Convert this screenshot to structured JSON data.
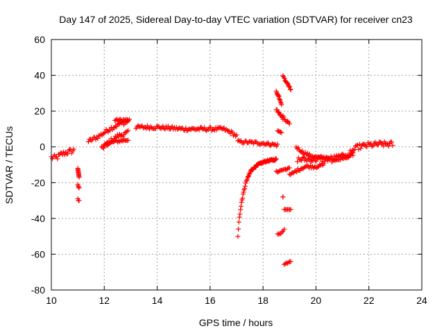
{
  "chart_data": {
    "type": "scatter",
    "title": "Day 147 of 2025, Sidereal Day-to-day VTEC variation (SDTVAR) for receiver cn23",
    "xlabel": "GPS time / hours",
    "ylabel": "SDTVAR / TECUs",
    "xlim": [
      10,
      24
    ],
    "ylim": [
      -80,
      60
    ],
    "xticks": [
      10,
      12,
      14,
      16,
      18,
      20,
      22,
      24
    ],
    "yticks": [
      -80,
      -60,
      -40,
      -20,
      0,
      20,
      40,
      60
    ],
    "grid": true,
    "marker": "+",
    "color": "#ff0000",
    "segments": [
      {
        "x0": 10.0,
        "x1": 10.85,
        "points": [
          [
            10.0,
            -6
          ],
          [
            10.2,
            -6
          ],
          [
            10.4,
            -4
          ],
          [
            10.6,
            -3
          ],
          [
            10.85,
            -2
          ]
        ],
        "spread": 1.5
      },
      {
        "x0": 11.0,
        "x1": 11.05,
        "points": [
          [
            11.0,
            -12
          ],
          [
            11.02,
            -14
          ],
          [
            11.05,
            -17
          ]
        ],
        "spread": 0
      },
      {
        "x0": 11.0,
        "x1": 11.05,
        "points": [
          [
            11.0,
            -21
          ],
          [
            11.02,
            -22
          ],
          [
            11.05,
            -23
          ]
        ],
        "spread": 0
      },
      {
        "x0": 11.0,
        "x1": 11.05,
        "points": [
          [
            11.0,
            -29
          ],
          [
            11.02,
            -30
          ],
          [
            11.05,
            -30
          ]
        ],
        "spread": 0
      },
      {
        "x0": 11.4,
        "x1": 12.9,
        "points": [
          [
            11.4,
            3
          ],
          [
            11.8,
            6
          ],
          [
            12.2,
            10
          ],
          [
            12.6,
            13
          ],
          [
            12.9,
            14
          ]
        ],
        "spread": 1.2
      },
      {
        "x0": 12.4,
        "x1": 12.95,
        "points": [
          [
            12.4,
            15
          ],
          [
            12.7,
            15
          ],
          [
            12.95,
            15
          ]
        ],
        "spread": 0.6
      },
      {
        "x0": 11.9,
        "x1": 12.9,
        "points": [
          [
            11.9,
            -1
          ],
          [
            12.2,
            3
          ],
          [
            12.5,
            6
          ],
          [
            12.9,
            8
          ]
        ],
        "spread": 1.2
      },
      {
        "x0": 12.0,
        "x1": 12.9,
        "points": [
          [
            12.0,
            1
          ],
          [
            12.4,
            3
          ],
          [
            12.9,
            4
          ]
        ],
        "spread": 0.8
      },
      {
        "x0": 13.2,
        "x1": 17.0,
        "points": [
          [
            13.2,
            11
          ],
          [
            14.0,
            11
          ],
          [
            15.0,
            10
          ],
          [
            16.0,
            10
          ],
          [
            16.5,
            10
          ],
          [
            16.8,
            8
          ],
          [
            17.0,
            6
          ]
        ],
        "spread": 1.0
      },
      {
        "x0": 17.05,
        "x1": 18.55,
        "points": [
          [
            17.05,
            3
          ],
          [
            17.5,
            2.5
          ],
          [
            18.0,
            2
          ],
          [
            18.55,
            1
          ]
        ],
        "spread": 0.8
      },
      {
        "x0": 17.05,
        "x1": 18.5,
        "points": [
          [
            17.05,
            -50
          ],
          [
            17.1,
            -40
          ],
          [
            17.2,
            -30
          ],
          [
            17.35,
            -20
          ],
          [
            17.55,
            -13
          ],
          [
            17.8,
            -10
          ],
          [
            18.1,
            -8
          ],
          [
            18.5,
            -7
          ]
        ],
        "spread": 0.5
      },
      {
        "x0": 18.5,
        "x1": 18.7,
        "points": [
          [
            18.5,
            31
          ],
          [
            18.6,
            28
          ],
          [
            18.7,
            24
          ]
        ],
        "spread": 0.5
      },
      {
        "x0": 18.5,
        "x1": 18.75,
        "points": [
          [
            18.5,
            21
          ],
          [
            18.6,
            19
          ],
          [
            18.75,
            16
          ]
        ],
        "spread": 0.5
      },
      {
        "x0": 18.55,
        "x1": 18.7,
        "points": [
          [
            18.55,
            9
          ],
          [
            18.7,
            8
          ]
        ],
        "spread": 0
      },
      {
        "x0": 18.75,
        "x1": 19.05,
        "points": [
          [
            18.75,
            40
          ],
          [
            18.85,
            37
          ],
          [
            18.95,
            35
          ],
          [
            19.05,
            32
          ]
        ],
        "spread": 0.5
      },
      {
        "x0": 18.75,
        "x1": 19.0,
        "points": [
          [
            18.75,
            17
          ],
          [
            18.85,
            15
          ],
          [
            19.0,
            13
          ]
        ],
        "spread": 0.5
      },
      {
        "x0": 18.5,
        "x1": 19.0,
        "points": [
          [
            18.5,
            -14
          ],
          [
            18.7,
            -13
          ],
          [
            19.0,
            -12
          ]
        ],
        "spread": 0.5
      },
      {
        "x0": 18.55,
        "x1": 18.8,
        "points": [
          [
            18.55,
            -49
          ],
          [
            18.7,
            -48
          ],
          [
            18.8,
            -46
          ]
        ],
        "spread": 0.5
      },
      {
        "x0": 18.75,
        "x1": 18.75,
        "points": [
          [
            18.75,
            -28
          ]
        ],
        "spread": 0
      },
      {
        "x0": 18.8,
        "x1": 19.05,
        "points": [
          [
            18.8,
            -35
          ],
          [
            19.05,
            -35
          ]
        ],
        "spread": 0
      },
      {
        "x0": 18.8,
        "x1": 19.05,
        "points": [
          [
            18.8,
            -66
          ],
          [
            18.9,
            -65
          ],
          [
            19.05,
            -64
          ]
        ],
        "spread": 0.3
      },
      {
        "x0": 19.25,
        "x1": 20.5,
        "points": [
          [
            19.25,
            0
          ],
          [
            19.5,
            -3
          ],
          [
            19.8,
            -5
          ],
          [
            20.1,
            -6
          ],
          [
            20.5,
            -6
          ]
        ],
        "spread": 0.8
      },
      {
        "x0": 19.0,
        "x1": 20.3,
        "points": [
          [
            19.0,
            -16
          ],
          [
            19.3,
            -13
          ],
          [
            19.6,
            -11
          ],
          [
            20.0,
            -11
          ],
          [
            20.3,
            -10
          ]
        ],
        "spread": 0.8
      },
      {
        "x0": 19.3,
        "x1": 21.4,
        "points": [
          [
            19.3,
            -7
          ],
          [
            19.8,
            -7
          ],
          [
            20.3,
            -7
          ],
          [
            20.8,
            -6
          ],
          [
            21.2,
            -5
          ],
          [
            21.4,
            -4
          ]
        ],
        "spread": 1.5
      },
      {
        "x0": 20.6,
        "x1": 21.4,
        "points": [
          [
            20.6,
            -8
          ],
          [
            21.0,
            -6
          ],
          [
            21.4,
            -4
          ]
        ],
        "spread": 1.0
      },
      {
        "x0": 21.3,
        "x1": 22.9,
        "points": [
          [
            21.3,
            -3
          ],
          [
            21.6,
            0
          ],
          [
            22.0,
            1
          ],
          [
            22.4,
            1.5
          ],
          [
            22.9,
            1.5
          ]
        ],
        "spread": 1.5
      }
    ]
  }
}
